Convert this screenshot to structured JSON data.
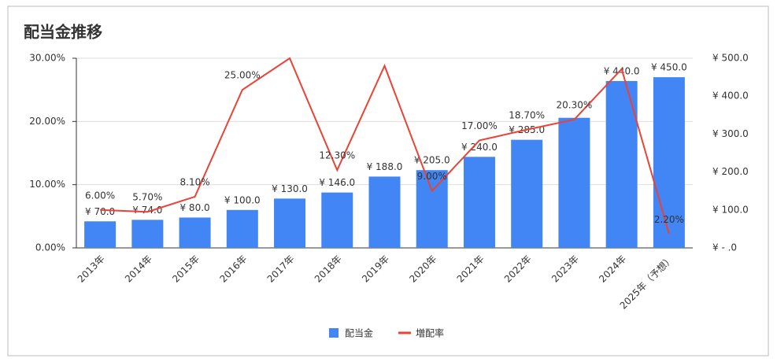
{
  "chart_data": {
    "type": "bar-line",
    "title": "配当金推移",
    "categories": [
      "2013年",
      "2014年",
      "2015年",
      "2016年",
      "2017年",
      "2018年",
      "2019年",
      "2020年",
      "2021年",
      "2022年",
      "2023年",
      "2024年",
      "2025年（予想）"
    ],
    "series": [
      {
        "name": "配当金",
        "type": "bar",
        "axis": "y2",
        "color": "#4285f4",
        "values": [
          70,
          74,
          80,
          100,
          130,
          146,
          188,
          205,
          240,
          285,
          343,
          440,
          450
        ],
        "value_labels": [
          "¥ 70.0",
          "¥ 74.0",
          "¥ 80.0",
          "¥ 100.0",
          "¥ 130.0",
          "¥ 146.0",
          "¥ 188.0",
          "¥ 205.0",
          "¥ 240.0",
          "¥ 285.0",
          null,
          "¥ 440.0",
          "¥ 450.0"
        ]
      },
      {
        "name": "増配率",
        "type": "line",
        "axis": "y",
        "color": "#ea4335",
        "values": [
          6.0,
          5.7,
          8.1,
          25.0,
          30.0,
          12.3,
          28.8,
          9.0,
          17.0,
          18.7,
          20.3,
          28.3,
          2.2
        ],
        "value_labels": [
          "6.00%",
          "5.70%",
          "8.10%",
          "25.00%",
          null,
          "12.30%",
          null,
          "9.00%",
          "17.00%",
          "18.70%",
          "20.30%",
          null,
          "2.20%"
        ]
      }
    ],
    "ylim": [
      0,
      30
    ],
    "yticks": [
      {
        "value": 0,
        "label": "0.00%"
      },
      {
        "value": 10,
        "label": "10.00%"
      },
      {
        "value": 20,
        "label": "20.00%"
      },
      {
        "value": 30,
        "label": "30.00%"
      }
    ],
    "y2lim": [
      0,
      500
    ],
    "y2ticks": [
      {
        "value": 0,
        "label": "¥ -  .0"
      },
      {
        "value": 100,
        "label": "¥ 100.0"
      },
      {
        "value": 200,
        "label": "¥ 200.0"
      },
      {
        "value": 300,
        "label": "¥ 300.0"
      },
      {
        "value": 400,
        "label": "¥ 400.0"
      },
      {
        "value": 500,
        "label": "¥ 500.0"
      }
    ],
    "grid": true,
    "legend": "bottom"
  }
}
